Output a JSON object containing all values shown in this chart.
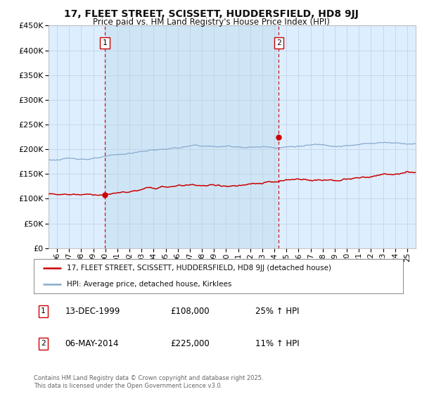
{
  "title": "17, FLEET STREET, SCISSETT, HUDDERSFIELD, HD8 9JJ",
  "subtitle": "Price paid vs. HM Land Registry's House Price Index (HPI)",
  "legend_line1": "17, FLEET STREET, SCISSETT, HUDDERSFIELD, HD8 9JJ (detached house)",
  "legend_line2": "HPI: Average price, detached house, Kirklees",
  "purchase1_label": "1",
  "purchase1_date": "13-DEC-1999",
  "purchase1_price": 108000,
  "purchase1_price_str": "£108,000",
  "purchase1_pct": "25% ↑ HPI",
  "purchase2_label": "2",
  "purchase2_date": "06-MAY-2014",
  "purchase2_price": 225000,
  "purchase2_price_str": "£225,000",
  "purchase2_pct": "11% ↑ HPI",
  "purchase1_x": 1999.95,
  "purchase2_x": 2014.37,
  "red_color": "#cc0000",
  "blue_color": "#88aacc",
  "plot_bg": "#ddeeff",
  "highlight_bg": "#cce0f5",
  "grid_color": "#c0cfe0",
  "vline_color": "#cc0000",
  "ylim": [
    0,
    450000
  ],
  "yticks": [
    0,
    50000,
    100000,
    150000,
    200000,
    250000,
    300000,
    350000,
    400000,
    450000
  ],
  "ytick_labels": [
    "£0",
    "£50K",
    "£100K",
    "£150K",
    "£200K",
    "£250K",
    "£300K",
    "£350K",
    "£400K",
    "£450K"
  ],
  "xlim_start": 1995.3,
  "xlim_end": 2025.7,
  "xtick_years": [
    1996,
    1997,
    1998,
    1999,
    2000,
    2001,
    2002,
    2003,
    2004,
    2005,
    2006,
    2007,
    2008,
    2009,
    2010,
    2011,
    2012,
    2013,
    2014,
    2015,
    2016,
    2017,
    2018,
    2019,
    2020,
    2021,
    2022,
    2023,
    2024,
    2025
  ],
  "xtick_labels": [
    "96",
    "97",
    "98",
    "99",
    "00",
    "01",
    "02",
    "03",
    "04",
    "05",
    "06",
    "07",
    "08",
    "09",
    "10",
    "11",
    "12",
    "13",
    "14",
    "15",
    "16",
    "17",
    "18",
    "19",
    "20",
    "21",
    "22",
    "23",
    "24",
    "25"
  ],
  "footer": "Contains HM Land Registry data © Crown copyright and database right 2025.\nThis data is licensed under the Open Government Licence v3.0."
}
